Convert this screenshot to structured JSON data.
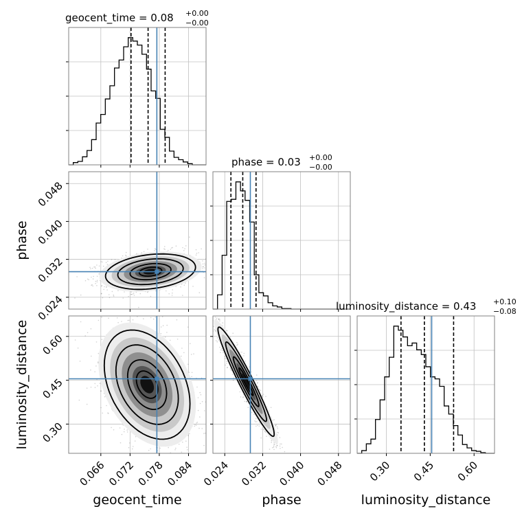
{
  "chart_data": {
    "type": "corner",
    "parameters": [
      "geocent_time",
      "phase",
      "luminosity_distance"
    ],
    "truths": {
      "geocent_time": 0.0775,
      "phase": 0.0294,
      "luminosity_distance": 0.455
    },
    "colors": {
      "truth": "#4682b4",
      "hist": "#000000",
      "grid": "#c0c0c0",
      "axes": "#808080"
    },
    "grid": true,
    "marginals": [
      {
        "name": "geocent_time",
        "title": {
          "main": "geocent_time = 0.08",
          "sup": "+0.00",
          "sub": "−0.00"
        },
        "range": [
          0.0594,
          0.0876
        ],
        "xticks": [
          0.066,
          0.072,
          0.078,
          0.084
        ],
        "xtick_labels": [
          "0.066",
          "0.072",
          "0.078",
          "0.084"
        ],
        "bin_edges_start": 0.0594,
        "bin_width": 0.00094,
        "counts": [
          0,
          0.4,
          0.6,
          1.4,
          2.5,
          4.4,
          7.3,
          8.8,
          11.5,
          13.8,
          16.9,
          18.3,
          20.6,
          22.2,
          21.6,
          20.9,
          19.3,
          16.7,
          12.9,
          11.6,
          6.2,
          4.8,
          2.4,
          1.3,
          0.9,
          0.5,
          0.2,
          0,
          0,
          0
        ],
        "quantiles": [
          0.0722,
          0.0757,
          0.0792
        ],
        "xlabel": "geocent_time"
      },
      {
        "name": "phase",
        "title": {
          "main": "phase = 0.03",
          "sup": "+0.00",
          "sub": "−0.00"
        },
        "range": [
          0.0215,
          0.0505
        ],
        "xticks": [
          0.024,
          0.032,
          0.04,
          0.048
        ],
        "xtick_labels": [
          "0.024",
          "0.032",
          "0.040",
          "0.048"
        ],
        "bin_edges_start": 0.0215,
        "bin_width": 0.00097,
        "counts": [
          0,
          2.7,
          10.2,
          20.4,
          20.8,
          24.1,
          22.4,
          20.6,
          16.5,
          6.5,
          3.1,
          2.5,
          1.2,
          0.6,
          0.4,
          0.1,
          0.1,
          0,
          0,
          0,
          0,
          0,
          0,
          0,
          0,
          0,
          0,
          0,
          0,
          0
        ],
        "quantiles": [
          0.0253,
          0.0278,
          0.0306
        ],
        "xlabel": "phase"
      },
      {
        "name": "luminosity_distance",
        "title": {
          "main": "luminosity_distance = 0.43",
          "sup": "+0.10",
          "sub": "−0.08"
        },
        "range": [
          0.2,
          0.67
        ],
        "xticks": [
          0.3,
          0.45,
          0.6
        ],
        "xtick_labels": [
          "0.30",
          "0.45",
          "0.60"
        ],
        "bin_edges_start": 0.2,
        "bin_width": 0.015667,
        "counts": [
          0,
          0.4,
          1.4,
          2.1,
          5.0,
          7.9,
          11.3,
          14.2,
          18.8,
          18.2,
          17.2,
          15.9,
          16.3,
          15.3,
          14.6,
          12.8,
          11.3,
          11.0,
          9.9,
          7.0,
          5.8,
          4.1,
          2.7,
          1.3,
          0.8,
          0.4,
          0.3,
          0.1,
          0,
          0
        ],
        "quantiles": [
          0.35,
          0.43,
          0.53
        ],
        "xlabel": "luminosity_distance"
      }
    ],
    "joint_panels": [
      {
        "x": "geocent_time",
        "y": "phase",
        "yticks": [
          0.024,
          0.032,
          0.04,
          0.048
        ],
        "ytick_labels": [
          "0.024",
          "0.032",
          "0.040",
          "0.048"
        ],
        "ylabel": "phase",
        "center": [
          0.0762,
          0.0294
        ],
        "sd": [
          0.0042,
          0.0017
        ],
        "rho": 0.25
      },
      {
        "x": "geocent_time",
        "y": "luminosity_distance",
        "yticks": [
          0.3,
          0.45,
          0.6
        ],
        "ytick_labels": [
          "0.30",
          "0.45",
          "0.60"
        ],
        "ylabel": "luminosity_distance",
        "center": [
          0.0755,
          0.435
        ],
        "sd": [
          0.004,
          0.085
        ],
        "rho": -0.35
      },
      {
        "x": "phase",
        "y": "luminosity_distance",
        "center": [
          0.0285,
          0.445
        ],
        "sd": [
          0.0027,
          0.085
        ],
        "rho": -0.96
      }
    ]
  }
}
